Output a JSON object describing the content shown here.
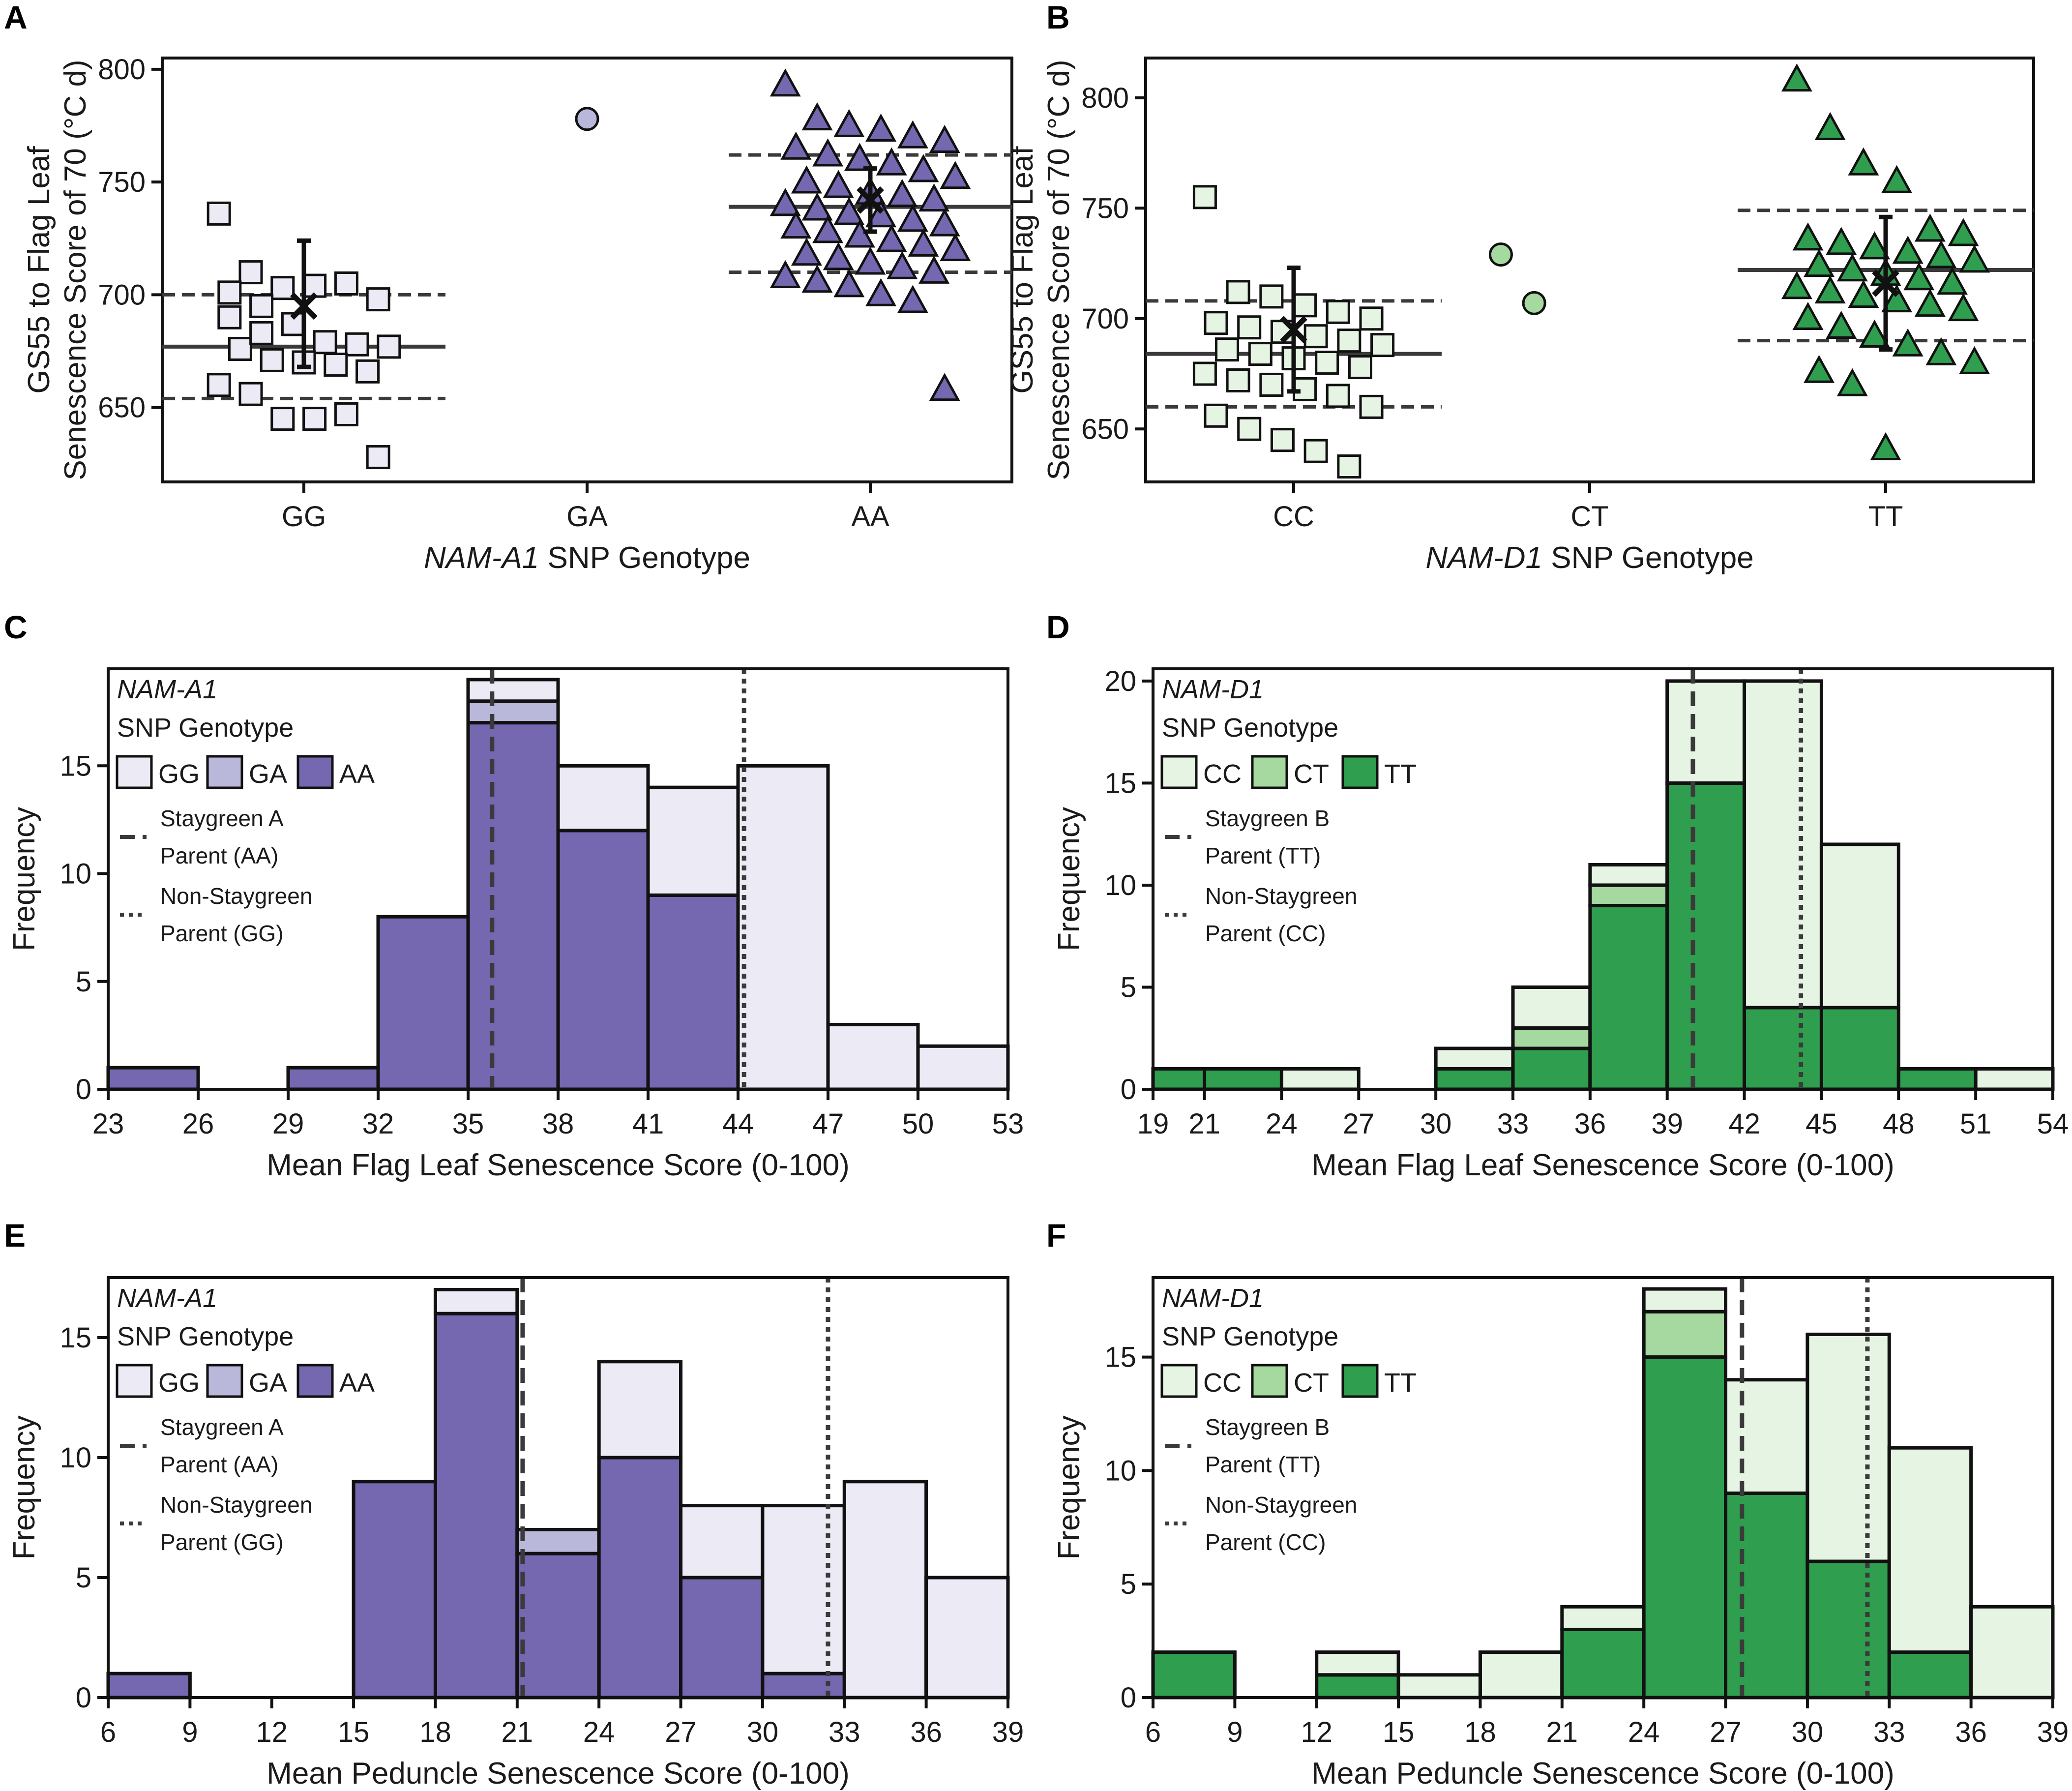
{
  "colors": {
    "a_gg": "#ebeaf5",
    "a_ga": "#b9b7da",
    "a_aa": "#7567b0",
    "d_cc": "#e6f5e3",
    "d_ct": "#a5d99f",
    "d_tt": "#2f9e4f",
    "line": "#3a3a3a",
    "border": "#111111"
  },
  "chart_data": [
    {
      "id": "A",
      "type": "scatter",
      "panel_label": "A",
      "gene": "NAM-A1",
      "xlabel_suffix": "SNP Genotype",
      "ylabel_line1": "GS55 to Flag Leaf",
      "ylabel_line2": "Senescence Score of 70 (°C d)",
      "ylim": [
        617,
        805
      ],
      "yticks": [
        650,
        700,
        750,
        800
      ],
      "categories": [
        "GG",
        "GA",
        "AA"
      ],
      "groups": [
        {
          "genotype": "GG",
          "marker": "square",
          "color_key": "a_gg",
          "values": [
            736,
            710,
            703,
            704,
            705,
            698,
            701,
            695,
            687,
            679,
            678,
            677,
            676,
            671,
            670,
            669,
            666,
            660,
            656,
            645,
            645,
            647,
            628,
            690,
            683
          ],
          "mean": 677,
          "sd_low": 654,
          "sd_high": 700,
          "parent_mean": 695,
          "parent_err_low": 668,
          "parent_err_high": 724
        },
        {
          "genotype": "GA",
          "marker": "circle",
          "color_key": "a_ga",
          "values": [
            778
          ]
        },
        {
          "genotype": "AA",
          "marker": "triangle",
          "color_key": "a_aa",
          "values": [
            793,
            778,
            775,
            773,
            770,
            768,
            765,
            762,
            760,
            758,
            755,
            752,
            750,
            748,
            745,
            744,
            742,
            740,
            738,
            736,
            735,
            733,
            731,
            730,
            728,
            726,
            724,
            722,
            720,
            718,
            716,
            714,
            712,
            710,
            708,
            706,
            704,
            700,
            697,
            658
          ],
          "mean": 739,
          "sd_low": 710,
          "sd_high": 762,
          "parent_mean": 742,
          "parent_err_low": 728,
          "parent_err_high": 756
        }
      ]
    },
    {
      "id": "B",
      "type": "scatter",
      "panel_label": "B",
      "gene": "NAM-D1",
      "xlabel_suffix": "SNP Genotype",
      "ylabel_line1": "GS55 to Flag Leaf",
      "ylabel_line2": "Senescence Score of 70 (°C d)",
      "ylim": [
        626,
        818
      ],
      "yticks": [
        650,
        700,
        750,
        800
      ],
      "categories": [
        "CC",
        "CT",
        "TT"
      ],
      "groups": [
        {
          "genotype": "CC",
          "marker": "square",
          "color_key": "d_cc",
          "values": [
            755,
            712,
            710,
            706,
            703,
            700,
            698,
            696,
            694,
            692,
            690,
            688,
            686,
            684,
            682,
            680,
            678,
            675,
            672,
            670,
            668,
            665,
            660,
            656,
            650,
            645,
            640,
            633
          ],
          "mean": 684,
          "sd_low": 660,
          "sd_high": 708,
          "parent_mean": 695,
          "parent_err_low": 667,
          "parent_err_high": 723
        },
        {
          "genotype": "CT",
          "marker": "circle",
          "color_key": "d_ct",
          "values": [
            729,
            707
          ]
        },
        {
          "genotype": "TT",
          "marker": "triangle",
          "color_key": "d_tt",
          "values": [
            808,
            786,
            770,
            762,
            740,
            738,
            736,
            734,
            732,
            730,
            728,
            726,
            724,
            722,
            720,
            718,
            716,
            714,
            712,
            710,
            708,
            706,
            704,
            700,
            696,
            692,
            688,
            684,
            680,
            676,
            670,
            641
          ],
          "mean": 722,
          "sd_low": 690,
          "sd_high": 749,
          "parent_mean": 716,
          "parent_err_low": 686,
          "parent_err_high": 746
        }
      ]
    },
    {
      "id": "C",
      "type": "bar",
      "panel_label": "C",
      "gene": "NAM-A1",
      "legend_title": "SNP Genotype",
      "xlabel": "Mean Flag Leaf Senescence Score (0-100)",
      "ylabel": "Frequency",
      "ylim": [
        0,
        19.5
      ],
      "yticks": [
        0,
        5,
        10,
        15
      ],
      "bin_edges": [
        23,
        26,
        29,
        32,
        35,
        38,
        41,
        44,
        47,
        50,
        53
      ],
      "series": [
        {
          "name": "AA",
          "color_key": "a_aa",
          "values": [
            1,
            0,
            1,
            8,
            17,
            12,
            9,
            0,
            0,
            0
          ]
        },
        {
          "name": "GA",
          "color_key": "a_ga",
          "values": [
            0,
            0,
            0,
            0,
            1,
            0,
            0,
            0,
            0,
            0
          ]
        },
        {
          "name": "GG",
          "color_key": "a_gg",
          "values": [
            0,
            0,
            0,
            0,
            1,
            3,
            5,
            15,
            3,
            2
          ]
        }
      ],
      "parent_lines": [
        {
          "label_line1": "Staygreen A",
          "label_line2": "Parent (AA)",
          "value": 35.8,
          "style": "dashed"
        },
        {
          "label_line1": "Non-Staygreen",
          "label_line2": "Parent (GG)",
          "value": 44.2,
          "style": "dotted"
        }
      ]
    },
    {
      "id": "D",
      "type": "bar",
      "panel_label": "D",
      "gene": "NAM-D1",
      "legend_title": "SNP Genotype",
      "xlabel": "Mean Flag Leaf Senescence Score (0-100)",
      "ylabel": "Frequency",
      "ylim": [
        0,
        20.6
      ],
      "yticks": [
        0,
        5,
        10,
        15,
        20
      ],
      "bin_edges": [
        19,
        21,
        24,
        27,
        30,
        33,
        36,
        39,
        42,
        45,
        48,
        51,
        54
      ],
      "series": [
        {
          "name": "TT",
          "color_key": "d_tt",
          "values": [
            1,
            1,
            0,
            0,
            1,
            2,
            9,
            15,
            4,
            4,
            1,
            0
          ]
        },
        {
          "name": "CT",
          "color_key": "d_ct",
          "values": [
            0,
            0,
            0,
            0,
            0,
            1,
            1,
            0,
            0,
            0,
            0,
            0
          ]
        },
        {
          "name": "CC",
          "color_key": "d_cc",
          "values": [
            0,
            0,
            1,
            0,
            1,
            2,
            1,
            5,
            16,
            8,
            0,
            1
          ]
        }
      ],
      "parent_lines": [
        {
          "label_line1": "Staygreen B",
          "label_line2": "Parent (TT)",
          "value": 40.0,
          "style": "dashed"
        },
        {
          "label_line1": "Non-Staygreen",
          "label_line2": "Parent (CC)",
          "value": 44.2,
          "style": "dotted"
        }
      ]
    },
    {
      "id": "E",
      "type": "bar",
      "panel_label": "E",
      "gene": "NAM-A1",
      "legend_title": "SNP Genotype",
      "xlabel": "Mean Peduncle Senescence Score (0-100)",
      "ylabel": "Frequency",
      "ylim": [
        0,
        17.5
      ],
      "yticks": [
        0,
        5,
        10,
        15
      ],
      "bin_edges": [
        6,
        9,
        12,
        15,
        18,
        21,
        24,
        27,
        30,
        33,
        36,
        39
      ],
      "series": [
        {
          "name": "AA",
          "color_key": "a_aa",
          "values": [
            1,
            0,
            0,
            9,
            16,
            6,
            10,
            5,
            1,
            0,
            0
          ]
        },
        {
          "name": "GA",
          "color_key": "a_ga",
          "values": [
            0,
            0,
            0,
            0,
            0,
            1,
            0,
            0,
            0,
            0,
            0
          ]
        },
        {
          "name": "GG",
          "color_key": "a_gg",
          "values": [
            0,
            0,
            0,
            0,
            1,
            0,
            4,
            3,
            7,
            9,
            5
          ]
        }
      ],
      "parent_lines": [
        {
          "label_line1": "Staygreen A",
          "label_line2": "Parent (AA)",
          "value": 21.2,
          "style": "dashed"
        },
        {
          "label_line1": "Non-Staygreen",
          "label_line2": "Parent (GG)",
          "value": 32.4,
          "style": "dotted"
        }
      ]
    },
    {
      "id": "F",
      "type": "bar",
      "panel_label": "F",
      "gene": "NAM-D1",
      "legend_title": "SNP Genotype",
      "xlabel": "Mean Peduncle Senescence Score (0-100)",
      "ylabel": "Frequency",
      "ylim": [
        0,
        18.5
      ],
      "yticks": [
        0,
        5,
        10,
        15
      ],
      "bin_edges": [
        6,
        9,
        12,
        15,
        18,
        21,
        24,
        27,
        30,
        33,
        36,
        39
      ],
      "series": [
        {
          "name": "TT",
          "color_key": "d_tt",
          "values": [
            2,
            0,
            1,
            0,
            0,
            3,
            15,
            9,
            6,
            2,
            0
          ]
        },
        {
          "name": "CT",
          "color_key": "d_ct",
          "values": [
            0,
            0,
            0,
            0,
            0,
            0,
            2,
            0,
            0,
            0,
            0
          ]
        },
        {
          "name": "CC",
          "color_key": "d_cc",
          "values": [
            0,
            0,
            1,
            1,
            2,
            1,
            1,
            5,
            10,
            9,
            4
          ]
        }
      ],
      "parent_lines": [
        {
          "label_line1": "Staygreen B",
          "label_line2": "Parent (TT)",
          "value": 27.6,
          "style": "dashed"
        },
        {
          "label_line1": "Non-Staygreen",
          "label_line2": "Parent (CC)",
          "value": 32.2,
          "style": "dotted"
        }
      ]
    }
  ]
}
